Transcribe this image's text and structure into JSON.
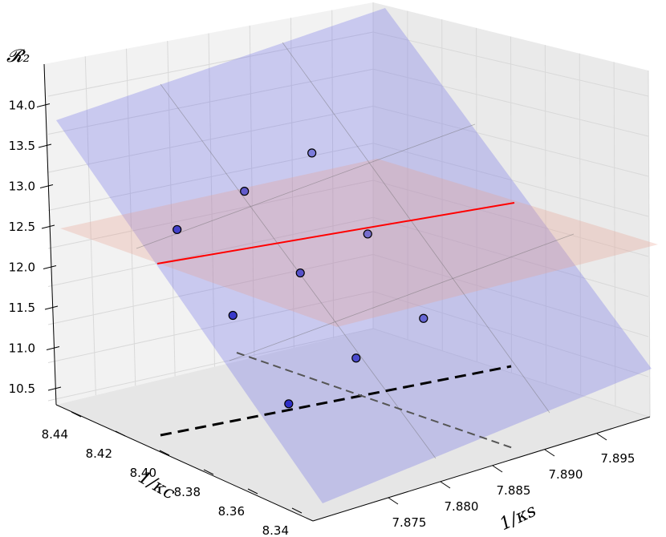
{
  "chart_data": {
    "type": "scatter",
    "projection": "3d",
    "title": "",
    "zlabel": "𝓡₂",
    "ylabel": "1/κc",
    "xlabel": "1/κs",
    "z_ticks": [
      "10.5",
      "11.0",
      "11.5",
      "12.0",
      "12.5",
      "13.0",
      "13.5",
      "14.0"
    ],
    "y_ticks": [
      "8.44",
      "8.42",
      "8.40",
      "8.38",
      "8.36",
      "8.34"
    ],
    "x_ticks": [
      "7.875",
      "7.880",
      "7.885",
      "7.890",
      "7.895"
    ],
    "xlim": [
      7.872,
      7.897
    ],
    "ylim": [
      8.335,
      8.45
    ],
    "zlim": [
      10.3,
      14.3
    ],
    "grid": true,
    "points": [
      {
        "x": 7.876,
        "y": 8.37,
        "z": 11.15
      },
      {
        "x": 7.876,
        "y": 8.395,
        "z": 11.95
      },
      {
        "x": 7.876,
        "y": 8.42,
        "z": 12.72
      },
      {
        "x": 7.881,
        "y": 8.37,
        "z": 11.45
      },
      {
        "x": 7.881,
        "y": 8.395,
        "z": 12.22
      },
      {
        "x": 7.881,
        "y": 8.42,
        "z": 12.95
      },
      {
        "x": 7.886,
        "y": 8.37,
        "z": 11.68
      },
      {
        "x": 7.886,
        "y": 8.395,
        "z": 12.45
      },
      {
        "x": 7.886,
        "y": 8.42,
        "z": 13.18
      }
    ],
    "fitted_plane": {
      "color": "#6a6ae8",
      "opacity": 0.3
    },
    "reference_plane": {
      "z": 12.35,
      "color": "#e8a090",
      "opacity": 0.3
    },
    "intersection_line": {
      "color": "#ff0000"
    },
    "projection_lines": [
      {
        "style": "dashed",
        "color": "#000000"
      },
      {
        "style": "dashed",
        "color": "#555555"
      }
    ]
  }
}
